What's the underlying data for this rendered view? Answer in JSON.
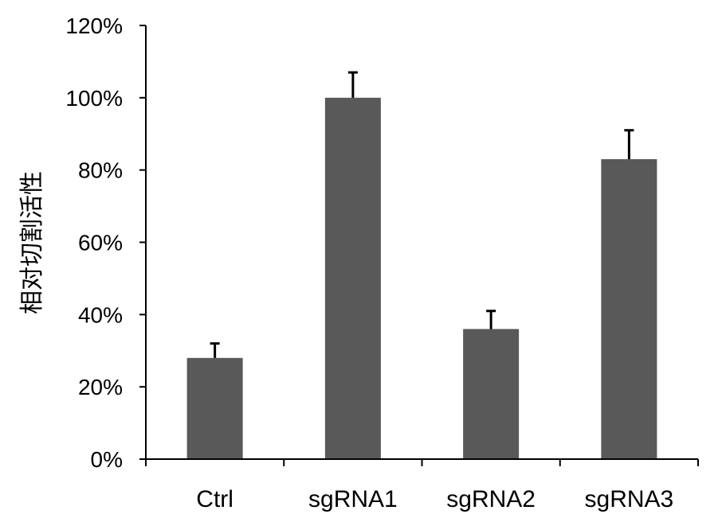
{
  "chart_data": {
    "type": "bar",
    "title": "",
    "xlabel": "",
    "ylabel": "相对切割活性",
    "categories": [
      "Ctrl",
      "sgRNA1",
      "sgRNA2",
      "sgRNA3"
    ],
    "values": [
      28,
      100,
      36,
      83
    ],
    "errors": [
      4,
      7,
      5,
      8
    ],
    "ylim": [
      0,
      120
    ],
    "yticks": [
      0,
      20,
      40,
      60,
      80,
      100,
      120
    ],
    "ytick_labels": [
      "0%",
      "20%",
      "40%",
      "60%",
      "80%",
      "100%",
      "120%"
    ],
    "grid": false,
    "bar_color": "#595959",
    "axis_color": "#000000"
  }
}
